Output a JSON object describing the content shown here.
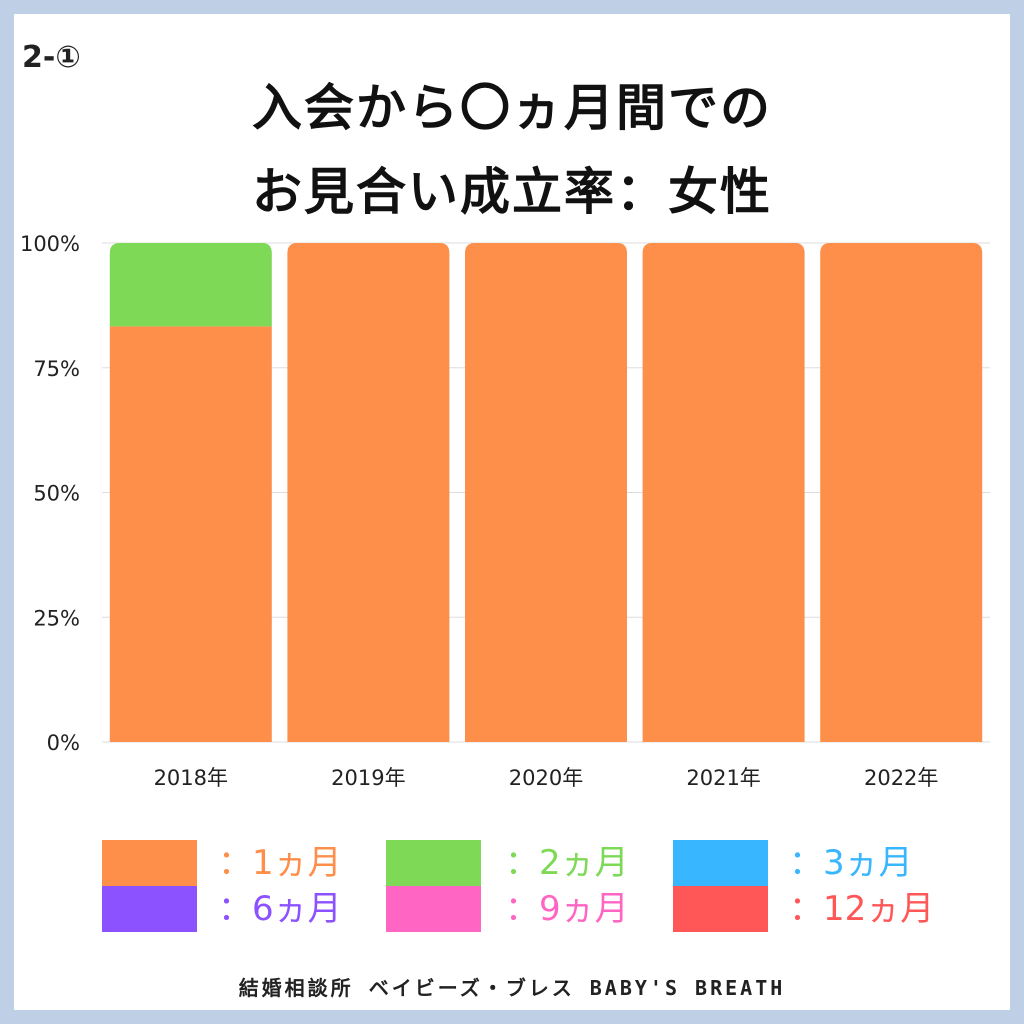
{
  "section_label": "2-①",
  "title_lines": [
    "入会から〇ヵ月間での",
    "お見合い成立率：女性"
  ],
  "footer": "結婚相談所 ベイビーズ・ブレス BABY'S BREATH",
  "colors": {
    "1m": "#fd8f4b",
    "2m": "#7ed957",
    "3m": "#38b6ff",
    "6m": "#8c52ff",
    "9m": "#ff66c4",
    "12m": "#ff5757",
    "grid": "#dddddd",
    "border": "#bfcfe6"
  },
  "legend": [
    {
      "key": "1m",
      "label": "：1ヵ月"
    },
    {
      "key": "2m",
      "label": "：2ヵ月"
    },
    {
      "key": "3m",
      "label": "：3ヵ月"
    },
    {
      "key": "6m",
      "label": "：6ヵ月"
    },
    {
      "key": "9m",
      "label": "：9ヵ月"
    },
    {
      "key": "12m",
      "label": "：12ヵ月"
    }
  ],
  "chart_data": {
    "type": "bar",
    "stacked": true,
    "categories": [
      "2018年",
      "2019年",
      "2020年",
      "2021年",
      "2022年"
    ],
    "series": [
      {
        "name": "：1ヵ月",
        "key": "1m",
        "values": [
          83.3,
          100,
          100,
          100,
          100
        ]
      },
      {
        "name": "：2ヵ月",
        "key": "2m",
        "values": [
          16.7,
          0,
          0,
          0,
          0
        ]
      },
      {
        "name": "：3ヵ月",
        "key": "3m",
        "values": [
          0,
          0,
          0,
          0,
          0
        ]
      },
      {
        "name": "：6ヵ月",
        "key": "6m",
        "values": [
          0,
          0,
          0,
          0,
          0
        ]
      },
      {
        "name": "：9ヵ月",
        "key": "9m",
        "values": [
          0,
          0,
          0,
          0,
          0
        ]
      },
      {
        "name": "：12ヵ月",
        "key": "12m",
        "values": [
          0,
          0,
          0,
          0,
          0
        ]
      }
    ],
    "ylim": [
      0,
      100
    ],
    "y_ticks": [
      "0%",
      "25%",
      "50%",
      "75%",
      "100%"
    ],
    "grid": true,
    "legend_position": "bottom"
  }
}
